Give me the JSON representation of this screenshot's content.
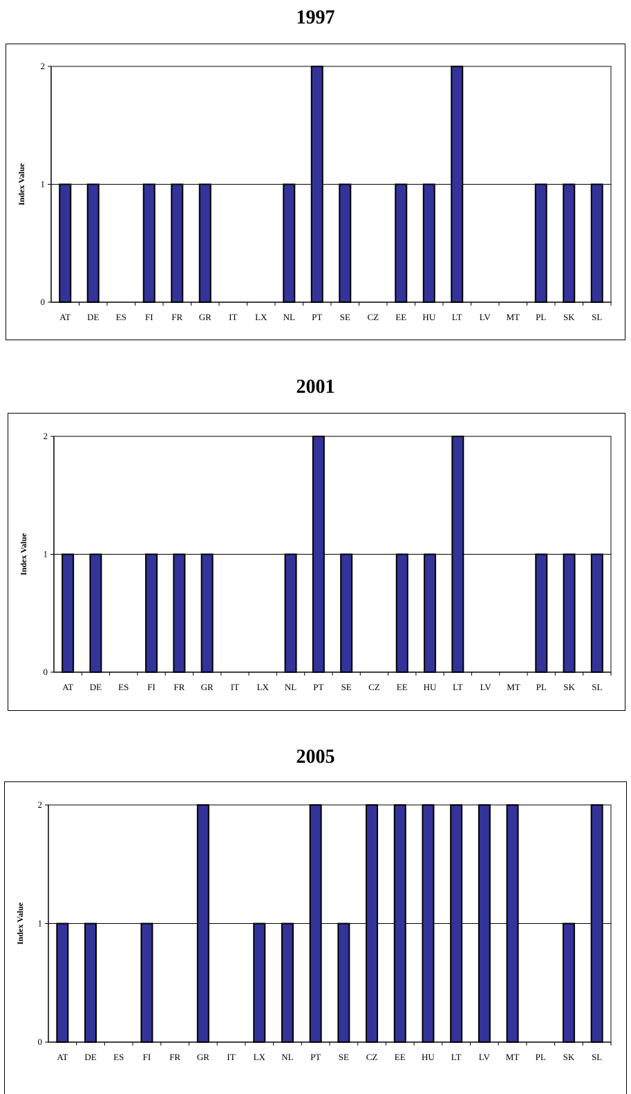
{
  "colors": {
    "bar_fill": "#333399",
    "bar_stroke": "#000000",
    "plot_border": "#808080",
    "gridline": "#000000"
  },
  "chart_data": [
    {
      "type": "bar",
      "title": "1997",
      "ylabel": "Index Value",
      "xlabel": "",
      "ylim": [
        0,
        2
      ],
      "yticks": [
        0,
        1,
        2
      ],
      "grid": true,
      "categories": [
        "AT",
        "DE",
        "ES",
        "FI",
        "FR",
        "GR",
        "IT",
        "LX",
        "NL",
        "PT",
        "SE",
        "CZ",
        "EE",
        "HU",
        "LT",
        "LV",
        "MT",
        "PL",
        "SK",
        "SL"
      ],
      "values": [
        1,
        1,
        0,
        1,
        1,
        1,
        0,
        0,
        1,
        2,
        1,
        0,
        1,
        1,
        2,
        0,
        0,
        1,
        1,
        1
      ]
    },
    {
      "type": "bar",
      "title": "2001",
      "ylabel": "Index Value",
      "xlabel": "",
      "ylim": [
        0,
        2
      ],
      "yticks": [
        0,
        1,
        2
      ],
      "grid": true,
      "categories": [
        "AT",
        "DE",
        "ES",
        "FI",
        "FR",
        "GR",
        "IT",
        "LX",
        "NL",
        "PT",
        "SE",
        "CZ",
        "EE",
        "HU",
        "LT",
        "LV",
        "MT",
        "PL",
        "SK",
        "SL"
      ],
      "values": [
        1,
        1,
        0,
        1,
        1,
        1,
        0,
        0,
        1,
        2,
        1,
        0,
        1,
        1,
        2,
        0,
        0,
        1,
        1,
        1
      ]
    },
    {
      "type": "bar",
      "title": "2005",
      "ylabel": "Index Value",
      "xlabel": "",
      "ylim": [
        0,
        2
      ],
      "yticks": [
        0,
        1,
        2
      ],
      "grid": true,
      "categories": [
        "AT",
        "DE",
        "ES",
        "FI",
        "FR",
        "GR",
        "IT",
        "LX",
        "NL",
        "PT",
        "SE",
        "CZ",
        "EE",
        "HU",
        "LT",
        "LV",
        "MT",
        "PL",
        "SK",
        "SL"
      ],
      "values": [
        1,
        1,
        0,
        1,
        0,
        2,
        0,
        1,
        1,
        2,
        1,
        2,
        2,
        2,
        2,
        2,
        2,
        0,
        1,
        2
      ]
    }
  ]
}
